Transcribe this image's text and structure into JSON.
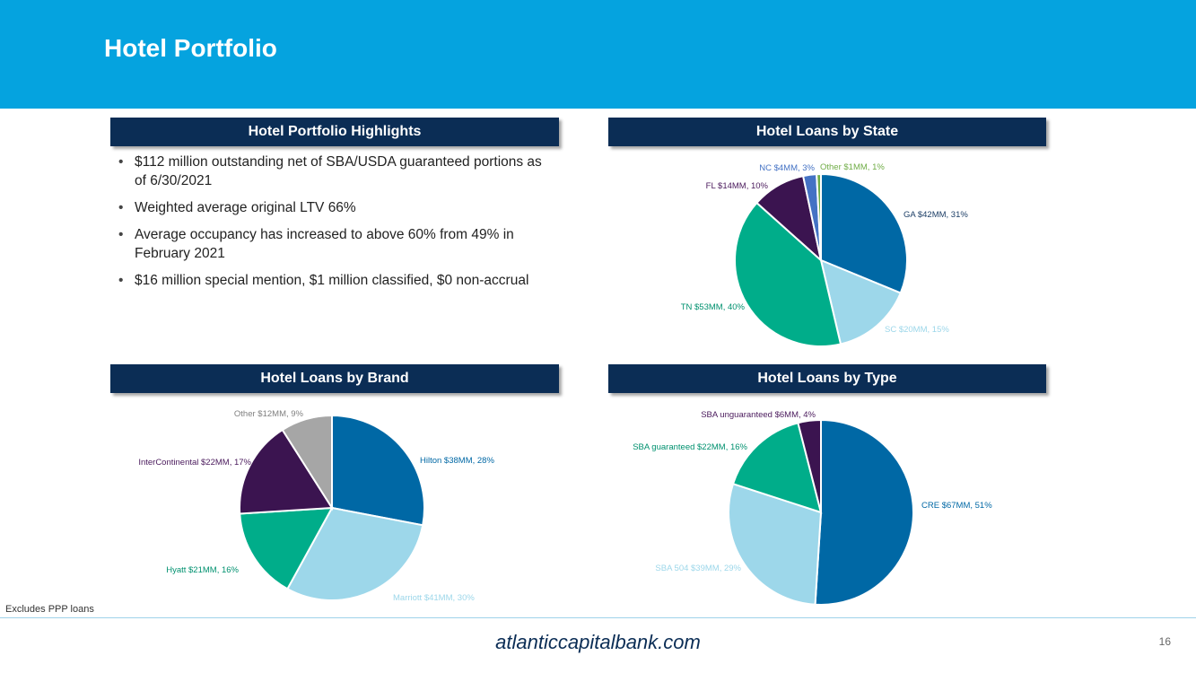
{
  "header": {
    "title": "Hotel Portfolio"
  },
  "highlights": {
    "title": "Hotel Portfolio Highlights",
    "bullets": [
      "$112 million outstanding net of SBA/USDA guaranteed portions as of 6/30/2021",
      "Weighted average original LTV 66%",
      "Average occupancy has increased to above 60% from 49% in February 2021",
      "$16 million special mention, $1 million classified, $0 non-accrual"
    ]
  },
  "chart_data": [
    {
      "id": "state",
      "type": "pie",
      "title": "Hotel Loans by State",
      "slices": [
        {
          "label": "GA $42MM, 31%",
          "value": 31,
          "color": "#0068a5",
          "label_color": "#1c3e66"
        },
        {
          "label": "SC $20MM, 15%",
          "value": 15,
          "color": "#9dd7ea",
          "label_color": "#9dd7ea"
        },
        {
          "label": "TN $53MM, 40%",
          "value": 40,
          "color": "#00ad8a",
          "label_color": "#00916f"
        },
        {
          "label": "FL $14MM, 10%",
          "value": 10,
          "color": "#3b1450",
          "label_color": "#4a1a5c"
        },
        {
          "label": "NC $4MM, 3%",
          "value": 2.5,
          "color": "#4472c4",
          "label_color": "#4472c4"
        },
        {
          "label": "Other $1MM, 1%",
          "value": 0.8,
          "color": "#70ad47",
          "label_color": "#70ad47"
        }
      ]
    },
    {
      "id": "brand",
      "type": "pie",
      "title": "Hotel Loans by Brand",
      "slices": [
        {
          "label": "Hilton $38MM, 28%",
          "value": 28,
          "color": "#0068a5",
          "label_color": "#0068a5"
        },
        {
          "label": "Marriott $41MM, 30%",
          "value": 30,
          "color": "#9dd7ea",
          "label_color": "#9dd7ea"
        },
        {
          "label": "Hyatt $21MM, 16%",
          "value": 16,
          "color": "#00ad8a",
          "label_color": "#00916f"
        },
        {
          "label": "InterContinental $22MM, 17%",
          "value": 17,
          "color": "#3b1450",
          "label_color": "#4a1a5c"
        },
        {
          "label": "Other $12MM, 9%",
          "value": 9,
          "color": "#a6a6a6",
          "label_color": "#808080"
        }
      ]
    },
    {
      "id": "type",
      "type": "pie",
      "title": "Hotel Loans by Type",
      "slices": [
        {
          "label": "CRE $67MM, 51%",
          "value": 51,
          "color": "#0068a5",
          "label_color": "#0068a5"
        },
        {
          "label": "SBA 504 $39MM, 29%",
          "value": 29,
          "color": "#9dd7ea",
          "label_color": "#9dd7ea"
        },
        {
          "label": "SBA guaranteed $22MM, 16%",
          "value": 16,
          "color": "#00ad8a",
          "label_color": "#00916f"
        },
        {
          "label": "SBA unguaranteed $6MM, 4%",
          "value": 4,
          "color": "#3b1450",
          "label_color": "#4a1a5c"
        }
      ]
    }
  ],
  "footer": {
    "note": "Excludes PPP loans",
    "url": "atlanticcapitalbank.com",
    "page": "16"
  }
}
